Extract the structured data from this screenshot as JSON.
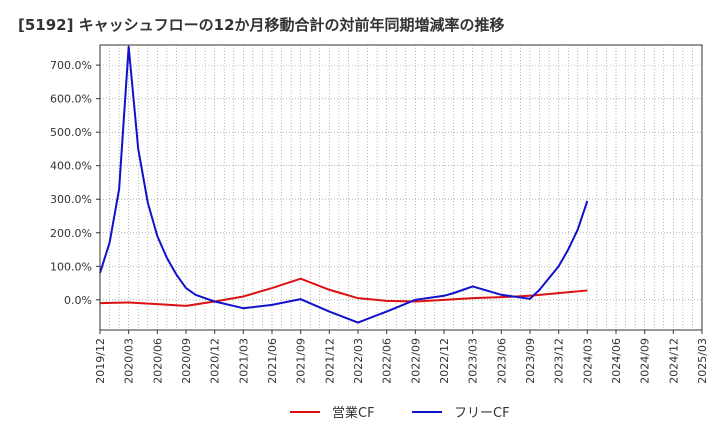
{
  "chart_data": {
    "type": "line",
    "title": "[5192]  キャッシュフローの12か月移動合計の対前年同期増減率の推移",
    "xlabel": "",
    "ylabel": "",
    "ylim": [
      -90,
      760
    ],
    "yticks": [
      0,
      100,
      200,
      300,
      400,
      500,
      600,
      700
    ],
    "ytick_labels": [
      "0.0%",
      "100.0%",
      "200.0%",
      "300.0%",
      "400.0%",
      "500.0%",
      "600.0%",
      "700.0%"
    ],
    "x_start": "2019-12",
    "x_end": "2025-03",
    "xtick_labels": [
      "2019/12",
      "2020/03",
      "2020/06",
      "2020/09",
      "2020/12",
      "2021/03",
      "2021/06",
      "2021/09",
      "2021/12",
      "2022/03",
      "2022/06",
      "2022/09",
      "2022/12",
      "2023/03",
      "2023/06",
      "2023/09",
      "2023/12",
      "2024/03",
      "2024/06",
      "2024/09",
      "2024/12",
      "2025/03"
    ],
    "grid": true,
    "legend_position": "bottom",
    "series": [
      {
        "name": "営業CF",
        "color": "#dd1111",
        "x": [
          "2019/12",
          "2020/03",
          "2020/06",
          "2020/09",
          "2020/12",
          "2021/03",
          "2021/06",
          "2021/09",
          "2021/12",
          "2022/03",
          "2022/06",
          "2022/09",
          "2022/12",
          "2023/03",
          "2023/06",
          "2023/09",
          "2023/12",
          "2024/03"
        ],
        "values": [
          -10,
          -8,
          -13,
          -18,
          -5,
          10,
          35,
          63,
          30,
          5,
          -3,
          -5,
          0,
          5,
          8,
          12,
          20,
          28
        ]
      },
      {
        "name": "フリーCF",
        "color": "#1111cc",
        "x": [
          "2019/12",
          "2020/01",
          "2020/02",
          "2020/03",
          "2020/04",
          "2020/05",
          "2020/06",
          "2020/07",
          "2020/08",
          "2020/09",
          "2020/10",
          "2020/11",
          "2020/12",
          "2021/03",
          "2021/06",
          "2021/09",
          "2021/12",
          "2022/03",
          "2022/06",
          "2022/09",
          "2022/12",
          "2023/01",
          "2023/03",
          "2023/06",
          "2023/09",
          "2023/10",
          "2023/11",
          "2023/12",
          "2024/01",
          "2024/02",
          "2024/03"
        ],
        "values": [
          80,
          170,
          330,
          755,
          450,
          290,
          190,
          125,
          75,
          35,
          15,
          5,
          -5,
          -25,
          -15,
          2,
          -35,
          -68,
          -35,
          0,
          12,
          20,
          40,
          15,
          3,
          30,
          65,
          100,
          150,
          210,
          295
        ]
      }
    ]
  }
}
